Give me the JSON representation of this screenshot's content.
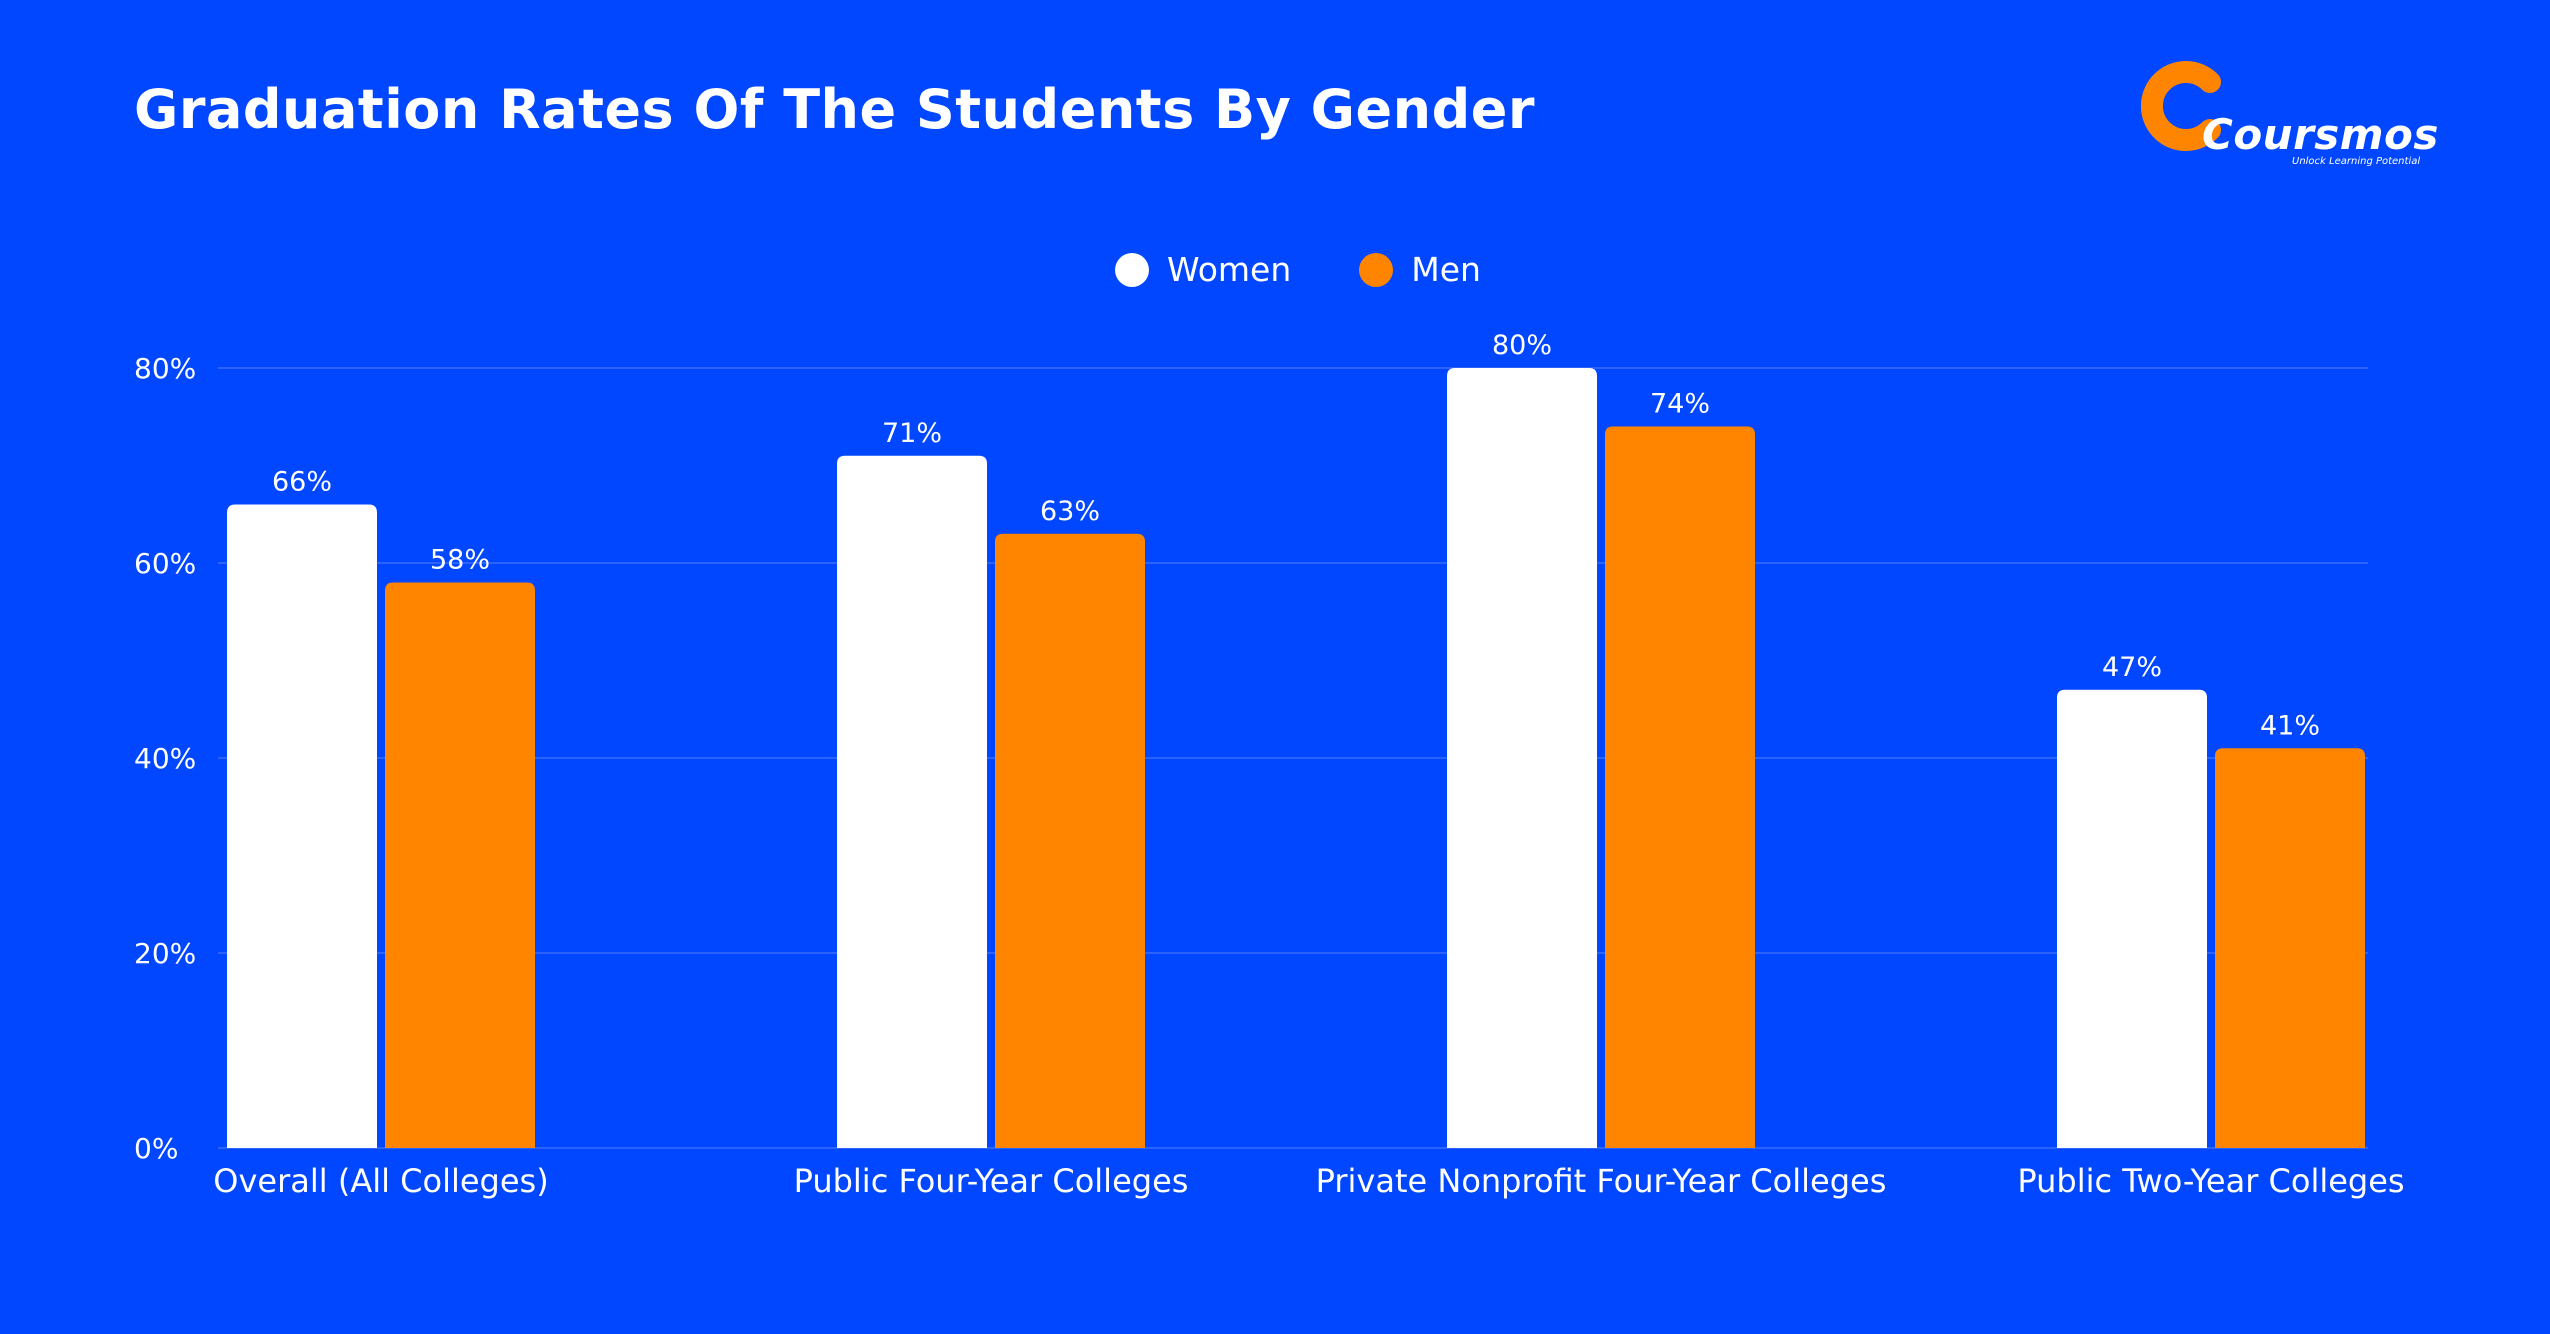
{
  "logo": {
    "brand": "Coursmos",
    "tagline": "Unlock Learning Potential"
  },
  "colors": {
    "background": "#0047FF",
    "women": "#FFFFFF",
    "men": "#FF8500",
    "grid": "#2C63FF"
  },
  "chart_data": {
    "type": "bar",
    "title": "Graduation Rates Of The Students By Gender",
    "xlabel": "",
    "ylabel": "",
    "categories": [
      "Overall (All Colleges)",
      "Public Four-Year Colleges",
      "Private Nonprofit Four-Year Colleges",
      "Public Two-Year Colleges"
    ],
    "series": [
      {
        "name": "Women",
        "values": [
          66,
          71,
          80,
          47
        ]
      },
      {
        "name": "Men",
        "values": [
          58,
          63,
          74,
          41
        ]
      }
    ],
    "ylim": [
      0,
      80
    ],
    "yticks": [
      0,
      20,
      40,
      60,
      80
    ],
    "ytick_labels": [
      "0%",
      "20%",
      "40%",
      "60%",
      "80%"
    ],
    "value_labels": [
      [
        "66%",
        "71%",
        "80%",
        "47%"
      ],
      [
        "58%",
        "63%",
        "74%",
        "41%"
      ]
    ],
    "grid": true,
    "legend_position": "top-center"
  }
}
